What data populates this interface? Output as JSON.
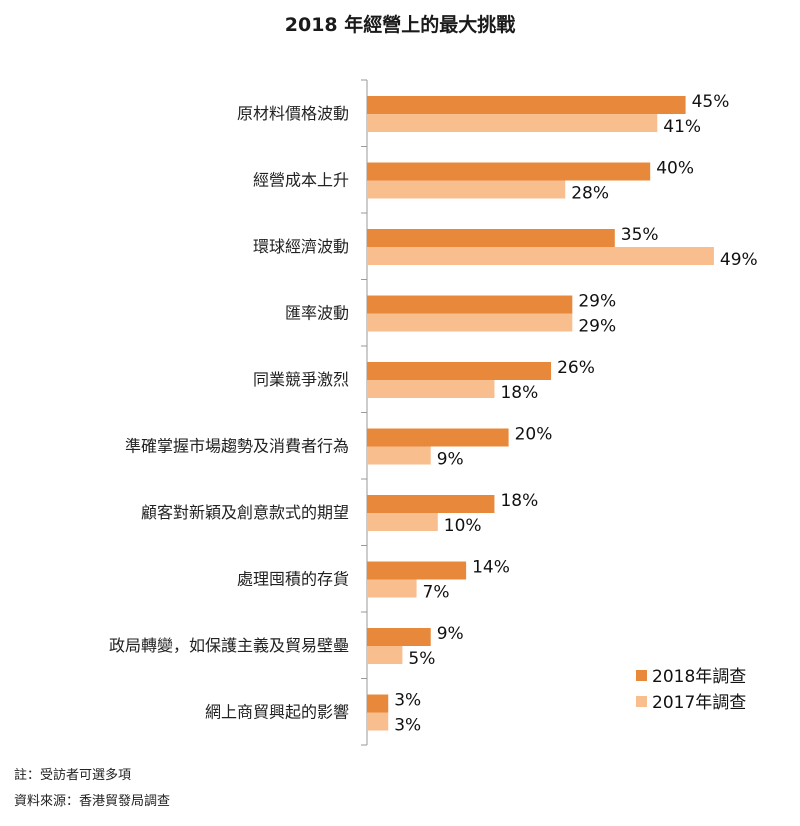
{
  "chart_data": {
    "type": "bar",
    "orientation": "horizontal",
    "title": "2018 年經營上的最大挑戰",
    "categories": [
      "原材料價格波動",
      "經營成本上升",
      "環球經濟波動",
      "匯率波動",
      "同業競爭激烈",
      "準確掌握市場趨勢及消費者行為",
      "顧客對新穎及創意款式的期望",
      "處理囤積的存貨",
      "政局轉變，如保護主義及貿易壁壘",
      "網上商貿興起的影響"
    ],
    "series": [
      {
        "name": "2018年調查",
        "color": "#E8883A",
        "values": [
          45,
          40,
          35,
          29,
          26,
          20,
          18,
          14,
          9,
          3
        ]
      },
      {
        "name": "2017年調查",
        "color": "#F9BE8E",
        "values": [
          41,
          28,
          49,
          29,
          18,
          9,
          10,
          7,
          5,
          3
        ]
      }
    ],
    "value_suffix": "%",
    "xlim": [
      0,
      50
    ],
    "grid": false,
    "legend": "bottom-right"
  },
  "notes": {
    "remark": "註：受訪者可選多項",
    "source": "資料來源：香港貿發局調查"
  }
}
